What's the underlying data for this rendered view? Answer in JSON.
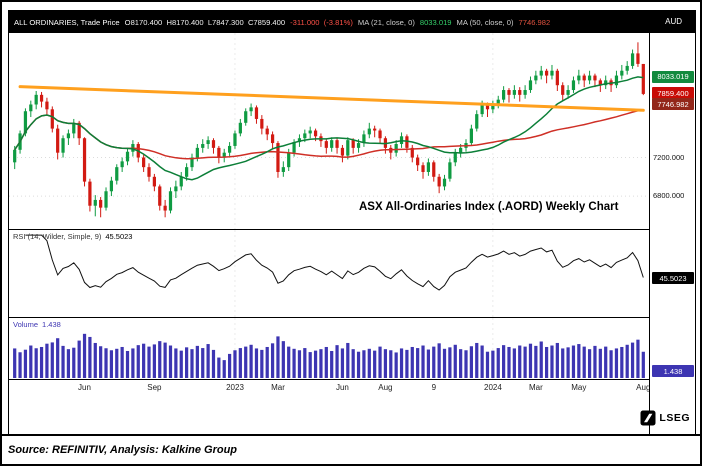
{
  "header": {
    "instrument": "ALL ORDINARIES, Trade Price",
    "ohlc": "O8170.400  H8170.400  L7847.300  C7859.400",
    "change": "-311.000  (-3.81%)",
    "ma21_label": "MA (21, close, 0)",
    "ma21_value": "8033.019",
    "ma50_label": "MA (50, close, 0)",
    "ma50_value": "7746.982",
    "currency": "AUD"
  },
  "annotation": "ASX All-Ordinaries Index (.AORD) Weekly Chart",
  "price_axis": {
    "badges": [
      {
        "name": "ma21-price-badge",
        "value": "8033.019",
        "price": 8033.019,
        "color": "#128a3e"
      },
      {
        "name": "last-price-badge",
        "value": "7859.400",
        "price": 7859.4,
        "color": "#c80b06"
      },
      {
        "name": "ma50-price-badge",
        "value": "7746.982",
        "price": 7746.982,
        "color": "#93271a"
      }
    ],
    "gridlines": [
      {
        "label": "7200.000",
        "price": 7200
      },
      {
        "label": "6800.000",
        "price": 6800
      }
    ]
  },
  "rsi_panel": {
    "label": "RSI (14, Wilder, Simple, 9)",
    "value": "45.5023",
    "badge": "45.5023"
  },
  "volume_panel": {
    "label": "Volume",
    "value": "1.438",
    "badge": "1.438"
  },
  "logo": {
    "text": "LSEG"
  },
  "footer": {
    "source": "Source: REFINITIV, Analysis: Kalkine Group"
  },
  "colors": {
    "up": "#0f9b42",
    "down": "#d21a12",
    "ma21": "#0c7f38",
    "ma50": "#cf2f26",
    "trendline": "#ffa01e",
    "volume": "#3d35b2",
    "rsi_line": "#111111",
    "badge_rsi": "#000000",
    "badge_volume": "#3d35b2",
    "header_bg": "#000000"
  },
  "chart_data": {
    "type": "candlestick",
    "title": "ASX All-Ordinaries Index (.AORD) Weekly Chart",
    "frequency": "weekly",
    "currency": "AUD",
    "price_range": [
      6500,
      8450
    ],
    "rsi_display_range": [
      15,
      85
    ],
    "overlays": {
      "ma21_period": 21,
      "ma50_period": 50
    },
    "trendline": {
      "start_index": 1,
      "start_price": 7935,
      "end_index": 117,
      "end_price": 7690
    },
    "x_ticks": [
      {
        "label": "Jun",
        "index": 13
      },
      {
        "label": "Sep",
        "index": 26
      },
      {
        "label": "2023",
        "index": 41
      },
      {
        "label": "Mar",
        "index": 49
      },
      {
        "label": "Jun",
        "index": 61
      },
      {
        "label": "Aug",
        "index": 69
      },
      {
        "label": "9",
        "index": 78
      },
      {
        "label": "2024",
        "index": 89
      },
      {
        "label": "Mar",
        "index": 97
      },
      {
        "label": "May",
        "index": 105
      },
      {
        "label": "Aug",
        "index": 117
      }
    ],
    "candles": [
      [
        7150,
        7320,
        7080,
        7280
      ],
      [
        7280,
        7480,
        7240,
        7450
      ],
      [
        7450,
        7710,
        7420,
        7680
      ],
      [
        7680,
        7790,
        7620,
        7750
      ],
      [
        7750,
        7890,
        7700,
        7850
      ],
      [
        7850,
        7880,
        7720,
        7780
      ],
      [
        7780,
        7820,
        7640,
        7700
      ],
      [
        7700,
        7730,
        7460,
        7500
      ],
      [
        7500,
        7540,
        7180,
        7250
      ],
      [
        7250,
        7430,
        7200,
        7400
      ],
      [
        7400,
        7490,
        7330,
        7450
      ],
      [
        7450,
        7600,
        7400,
        7560
      ],
      [
        7560,
        7580,
        7330,
        7400
      ],
      [
        7400,
        7410,
        6900,
        6950
      ],
      [
        6950,
        6980,
        6640,
        6700
      ],
      [
        6700,
        6810,
        6590,
        6760
      ],
      [
        6760,
        6790,
        6580,
        6680
      ],
      [
        6680,
        6890,
        6650,
        6850
      ],
      [
        6850,
        7000,
        6800,
        6960
      ],
      [
        6960,
        7130,
        6920,
        7100
      ],
      [
        7100,
        7200,
        7050,
        7160
      ],
      [
        7160,
        7300,
        7120,
        7260
      ],
      [
        7260,
        7380,
        7210,
        7340
      ],
      [
        7340,
        7360,
        7150,
        7200
      ],
      [
        7200,
        7230,
        7050,
        7100
      ],
      [
        7100,
        7140,
        6950,
        7000
      ],
      [
        7000,
        7030,
        6850,
        6900
      ],
      [
        6900,
        6920,
        6650,
        6700
      ],
      [
        6700,
        6760,
        6580,
        6650
      ],
      [
        6650,
        6890,
        6620,
        6850
      ],
      [
        6850,
        6960,
        6780,
        6900
      ],
      [
        6900,
        7050,
        6860,
        7000
      ],
      [
        7000,
        7140,
        6960,
        7100
      ],
      [
        7100,
        7240,
        7060,
        7200
      ],
      [
        7200,
        7340,
        7160,
        7300
      ],
      [
        7300,
        7390,
        7250,
        7340
      ],
      [
        7340,
        7420,
        7290,
        7380
      ],
      [
        7380,
        7400,
        7240,
        7300
      ],
      [
        7300,
        7320,
        7140,
        7200
      ],
      [
        7200,
        7290,
        7150,
        7250
      ],
      [
        7250,
        7360,
        7210,
        7320
      ],
      [
        7320,
        7480,
        7290,
        7450
      ],
      [
        7450,
        7600,
        7420,
        7560
      ],
      [
        7560,
        7710,
        7530,
        7680
      ],
      [
        7680,
        7760,
        7630,
        7720
      ],
      [
        7720,
        7740,
        7550,
        7600
      ],
      [
        7600,
        7640,
        7440,
        7500
      ],
      [
        7500,
        7530,
        7380,
        7440
      ],
      [
        7440,
        7470,
        7290,
        7350
      ],
      [
        7350,
        7370,
        6990,
        7050
      ],
      [
        7050,
        7160,
        7000,
        7100
      ],
      [
        7100,
        7290,
        7060,
        7250
      ],
      [
        7250,
        7390,
        7210,
        7360
      ],
      [
        7360,
        7440,
        7310,
        7400
      ],
      [
        7400,
        7490,
        7360,
        7450
      ],
      [
        7450,
        7520,
        7400,
        7480
      ],
      [
        7480,
        7500,
        7370,
        7420
      ],
      [
        7420,
        7450,
        7310,
        7370
      ],
      [
        7370,
        7390,
        7240,
        7300
      ],
      [
        7300,
        7410,
        7260,
        7380
      ],
      [
        7380,
        7400,
        7240,
        7300
      ],
      [
        7300,
        7330,
        7150,
        7220
      ],
      [
        7220,
        7410,
        7180,
        7380
      ],
      [
        7380,
        7400,
        7240,
        7300
      ],
      [
        7300,
        7390,
        7250,
        7350
      ],
      [
        7350,
        7480,
        7310,
        7440
      ],
      [
        7440,
        7560,
        7400,
        7500
      ],
      [
        7500,
        7530,
        7410,
        7480
      ],
      [
        7480,
        7500,
        7340,
        7400
      ],
      [
        7400,
        7420,
        7240,
        7300
      ],
      [
        7300,
        7330,
        7180,
        7250
      ],
      [
        7250,
        7380,
        7210,
        7340
      ],
      [
        7340,
        7460,
        7300,
        7420
      ],
      [
        7420,
        7440,
        7250,
        7300
      ],
      [
        7300,
        7330,
        7150,
        7200
      ],
      [
        7200,
        7230,
        7060,
        7120
      ],
      [
        7120,
        7150,
        6980,
        7050
      ],
      [
        7050,
        7190,
        7010,
        7150
      ],
      [
        7150,
        7170,
        6950,
        7000
      ],
      [
        7000,
        7030,
        6830,
        6900
      ],
      [
        6900,
        7020,
        6860,
        6980
      ],
      [
        6980,
        7190,
        6950,
        7150
      ],
      [
        7150,
        7290,
        7110,
        7250
      ],
      [
        7250,
        7340,
        7200,
        7300
      ],
      [
        7300,
        7390,
        7260,
        7350
      ],
      [
        7350,
        7540,
        7320,
        7500
      ],
      [
        7500,
        7690,
        7470,
        7650
      ],
      [
        7650,
        7790,
        7620,
        7750
      ],
      [
        7750,
        7770,
        7620,
        7700
      ],
      [
        7700,
        7790,
        7660,
        7750
      ],
      [
        7750,
        7840,
        7710,
        7800
      ],
      [
        7800,
        7940,
        7770,
        7900
      ],
      [
        7900,
        7920,
        7770,
        7850
      ],
      [
        7850,
        7950,
        7810,
        7900
      ],
      [
        7900,
        7930,
        7780,
        7850
      ],
      [
        7850,
        7950,
        7810,
        7900
      ],
      [
        7900,
        8040,
        7870,
        8000
      ],
      [
        8000,
        8100,
        7960,
        8050
      ],
      [
        8050,
        8150,
        8010,
        8100
      ],
      [
        8100,
        8120,
        7970,
        8050
      ],
      [
        8050,
        8160,
        8010,
        8100
      ],
      [
        8100,
        8120,
        7890,
        7950
      ],
      [
        7950,
        7980,
        7790,
        7850
      ],
      [
        7850,
        7950,
        7810,
        7900
      ],
      [
        7900,
        8040,
        7870,
        8000
      ],
      [
        8000,
        8110,
        7960,
        8050
      ],
      [
        8050,
        8070,
        7930,
        8000
      ],
      [
        8000,
        8100,
        7960,
        8050
      ],
      [
        8050,
        8070,
        7930,
        8000
      ],
      [
        8000,
        8020,
        7880,
        7950
      ],
      [
        7950,
        8050,
        7910,
        8000
      ],
      [
        8000,
        8020,
        7880,
        7950
      ],
      [
        7950,
        8100,
        7920,
        8050
      ],
      [
        8050,
        8160,
        8010,
        8100
      ],
      [
        8100,
        8200,
        8060,
        8150
      ],
      [
        8150,
        8320,
        8120,
        8280
      ],
      [
        8280,
        8395,
        8140,
        8171
      ],
      [
        8170.4,
        8170.4,
        7847.3,
        7859.4
      ]
    ],
    "volumes": [
      1.62,
      1.41,
      1.55,
      1.78,
      1.63,
      1.7,
      1.88,
      1.95,
      2.18,
      1.76,
      1.58,
      1.66,
      2.05,
      2.42,
      2.25,
      1.92,
      1.74,
      1.63,
      1.52,
      1.6,
      1.7,
      1.48,
      1.62,
      1.8,
      1.88,
      1.72,
      1.84,
      2.02,
      1.94,
      1.78,
      1.62,
      1.5,
      1.68,
      1.58,
      1.76,
      1.64,
      1.86,
      1.54,
      1.12,
      0.98,
      1.32,
      1.52,
      1.64,
      1.72,
      1.82,
      1.62,
      1.54,
      1.7,
      1.9,
      2.28,
      2.02,
      1.72,
      1.6,
      1.52,
      1.64,
      1.42,
      1.5,
      1.58,
      1.7,
      1.48,
      1.8,
      1.62,
      1.92,
      1.58,
      1.44,
      1.52,
      1.6,
      1.5,
      1.72,
      1.58,
      1.52,
      1.4,
      1.62,
      1.54,
      1.7,
      1.64,
      1.78,
      1.56,
      1.72,
      1.9,
      1.6,
      1.68,
      1.82,
      1.58,
      1.52,
      1.74,
      1.92,
      1.78,
      1.44,
      1.5,
      1.64,
      1.8,
      1.7,
      1.62,
      1.78,
      1.72,
      1.88,
      1.76,
      2.0,
      1.7,
      1.78,
      1.92,
      1.62,
      1.68,
      1.78,
      1.86,
      1.72,
      1.58,
      1.76,
      1.6,
      1.72,
      1.52,
      1.62,
      1.7,
      1.82,
      1.94,
      2.1,
      1.438
    ],
    "last_values": {
      "open": 8170.4,
      "high": 8170.4,
      "low": 7847.3,
      "close": 7859.4,
      "change": -311.0,
      "change_pct": -3.81,
      "ma21": 8033.019,
      "ma50": 7746.982,
      "rsi": 45.5023,
      "volume_b": 1.438
    }
  }
}
